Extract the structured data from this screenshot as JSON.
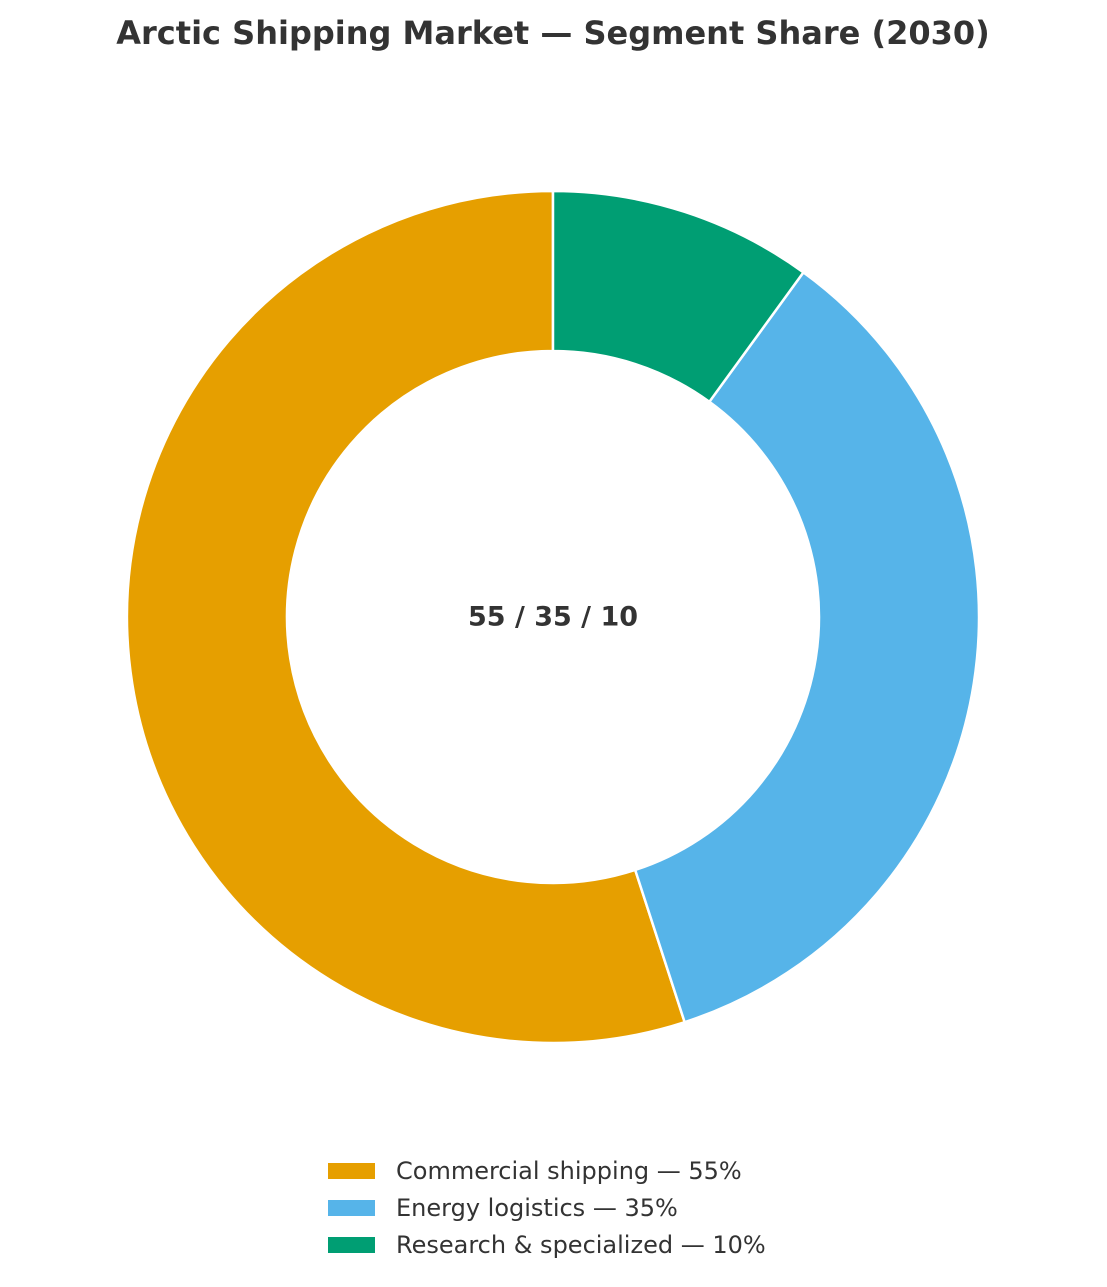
{
  "chart_data": {
    "type": "donut",
    "title": "Arctic Shipping Market — Segment Share (2030)",
    "center_label": "55 / 35 / 10",
    "categories": [
      "Commercial shipping — 55%",
      "Energy logistics — 35%",
      "Research & specialized — 10%"
    ],
    "values": [
      55,
      35,
      10
    ],
    "colors": [
      "#e69f00",
      "#56b4e9",
      "#009e73"
    ],
    "legend": "bottom"
  }
}
